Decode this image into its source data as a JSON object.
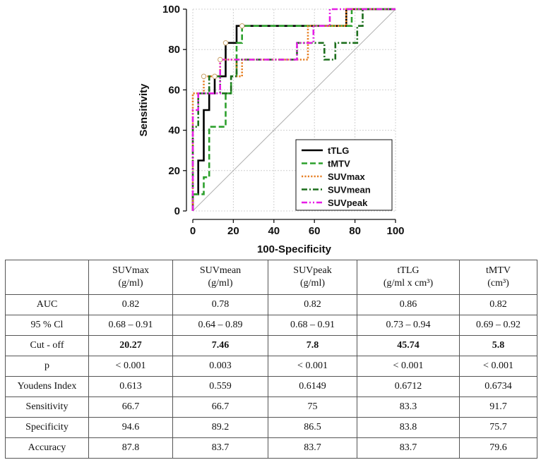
{
  "chart_data": {
    "type": "line",
    "subtype": "roc",
    "title": "",
    "xlabel": "100-Specificity",
    "ylabel": "Sensitivity",
    "xlim": [
      0,
      100
    ],
    "ylim": [
      0,
      100
    ],
    "xticks": [
      0,
      20,
      40,
      60,
      80,
      100
    ],
    "yticks": [
      0,
      20,
      40,
      60,
      80,
      100
    ],
    "grid": true,
    "legend_position": "bottom-right",
    "reference_line": {
      "x": [
        0,
        100
      ],
      "y": [
        0,
        100
      ]
    },
    "series": [
      {
        "name": "tTLG",
        "color": "#000000",
        "style": "solid",
        "x": [
          0,
          0,
          2.7,
          2.7,
          5.4,
          5.4,
          8.1,
          8.1,
          10.8,
          10.8,
          16.2,
          16.2,
          21.6,
          21.6,
          29.7,
          29.7,
          75.7,
          75.7,
          100
        ],
        "y": [
          0,
          8.3,
          8.3,
          25,
          25,
          50,
          50,
          58.3,
          58.3,
          66.7,
          66.7,
          83.3,
          83.3,
          91.7,
          91.7,
          91.7,
          91.7,
          100,
          100
        ],
        "cutoff": {
          "x": 16.2,
          "y": 83.3
        }
      },
      {
        "name": "tMTV",
        "color": "#2ca02c",
        "style": "dash",
        "x": [
          0,
          0,
          2.7,
          2.7,
          5.4,
          5.4,
          8.1,
          8.1,
          10.8,
          10.8,
          16.2,
          16.2,
          18.9,
          18.9,
          21.6,
          21.6,
          24.3,
          24.3,
          73,
          73,
          78.4,
          78.4,
          100
        ],
        "y": [
          0,
          8.3,
          8.3,
          8.3,
          8.3,
          16.7,
          16.7,
          41.7,
          41.7,
          41.7,
          41.7,
          58.3,
          58.3,
          66.7,
          66.7,
          83.3,
          83.3,
          91.7,
          91.7,
          91.7,
          91.7,
          100,
          100
        ],
        "cutoff": {
          "x": 24.3,
          "y": 91.7
        }
      },
      {
        "name": "SUVmax",
        "color": "#e67e22",
        "style": "dot",
        "x": [
          0,
          0,
          5.4,
          5.4,
          13.5,
          13.5,
          21.6,
          21.6,
          24.3,
          24.3,
          56.8,
          56.8,
          75.7,
          75.7,
          100
        ],
        "y": [
          0,
          58.3,
          58.3,
          66.7,
          66.7,
          75,
          75,
          66.7,
          66.7,
          75,
          75,
          91.7,
          91.7,
          100,
          100
        ],
        "cutoff": {
          "x": 5.4,
          "y": 66.7
        }
      },
      {
        "name": "SUVmean",
        "color": "#1b6e1b",
        "style": "dashdot",
        "x": [
          0,
          0,
          2.7,
          2.7,
          8.1,
          8.1,
          13.5,
          13.5,
          18.9,
          18.9,
          21.6,
          21.6,
          51.4,
          51.4,
          64.9,
          64.9,
          70.3,
          70.3,
          81.1,
          81.1,
          83.8,
          83.8,
          100
        ],
        "y": [
          0,
          41.7,
          41.7,
          58.3,
          58.3,
          66.7,
          66.7,
          58.3,
          58.3,
          66.7,
          66.7,
          75,
          75,
          83.3,
          83.3,
          75,
          75,
          83.3,
          83.3,
          91.7,
          91.7,
          100,
          100
        ],
        "cutoff": {
          "x": 10.8,
          "y": 66.7
        }
      },
      {
        "name": "SUVpeak",
        "color": "#e61ee6",
        "style": "dashdotdot",
        "x": [
          0,
          0,
          2.7,
          2.7,
          13.5,
          13.5,
          51.4,
          51.4,
          59.5,
          59.5,
          67.6,
          67.6,
          100
        ],
        "y": [
          0,
          50,
          50,
          58.3,
          58.3,
          75,
          75,
          83.3,
          83.3,
          91.7,
          91.7,
          100,
          100
        ],
        "cutoff": {
          "x": 13.5,
          "y": 75
        }
      }
    ]
  },
  "table": {
    "columns": [
      {
        "name": "SUVmax",
        "unit": "(g/ml)"
      },
      {
        "name": "SUVmean",
        "unit": "(g/ml)"
      },
      {
        "name": "SUVpeak",
        "unit": "(g/ml)"
      },
      {
        "name": "tTLG",
        "unit": "(g/ml x cm³)"
      },
      {
        "name": "tMTV",
        "unit": "(cm³)"
      }
    ],
    "rows": [
      {
        "label": "AUC",
        "values": [
          "0.82",
          "0.78",
          "0.82",
          "0.86",
          "0.82"
        ],
        "bold": false
      },
      {
        "label": "95 % Cl",
        "values": [
          "0.68 – 0.91",
          "0.64 – 0.89",
          "0.68 – 0.91",
          "0.73 – 0.94",
          "0.69 – 0.92"
        ],
        "bold": false
      },
      {
        "label": "Cut - off",
        "values": [
          "20.27",
          "7.46",
          "7.8",
          "45.74",
          "5.8"
        ],
        "bold": true
      },
      {
        "label": "p",
        "values": [
          "< 0.001",
          "0.003",
          "< 0.001",
          "< 0.001",
          "< 0.001"
        ],
        "bold": false
      },
      {
        "label": "Youdens Index",
        "values": [
          "0.613",
          "0.559",
          "0.6149",
          "0.6712",
          "0.6734"
        ],
        "bold": false
      },
      {
        "label": "Sensitivity",
        "values": [
          "66.7",
          "66.7",
          "75",
          "83.3",
          "91.7"
        ],
        "bold": false
      },
      {
        "label": "Specificity",
        "values": [
          "94.6",
          "89.2",
          "86.5",
          "83.8",
          "75.7"
        ],
        "bold": false
      },
      {
        "label": "Accuracy",
        "values": [
          "87.8",
          "83.7",
          "83.7",
          "83.7",
          "79.6"
        ],
        "bold": false
      }
    ]
  }
}
